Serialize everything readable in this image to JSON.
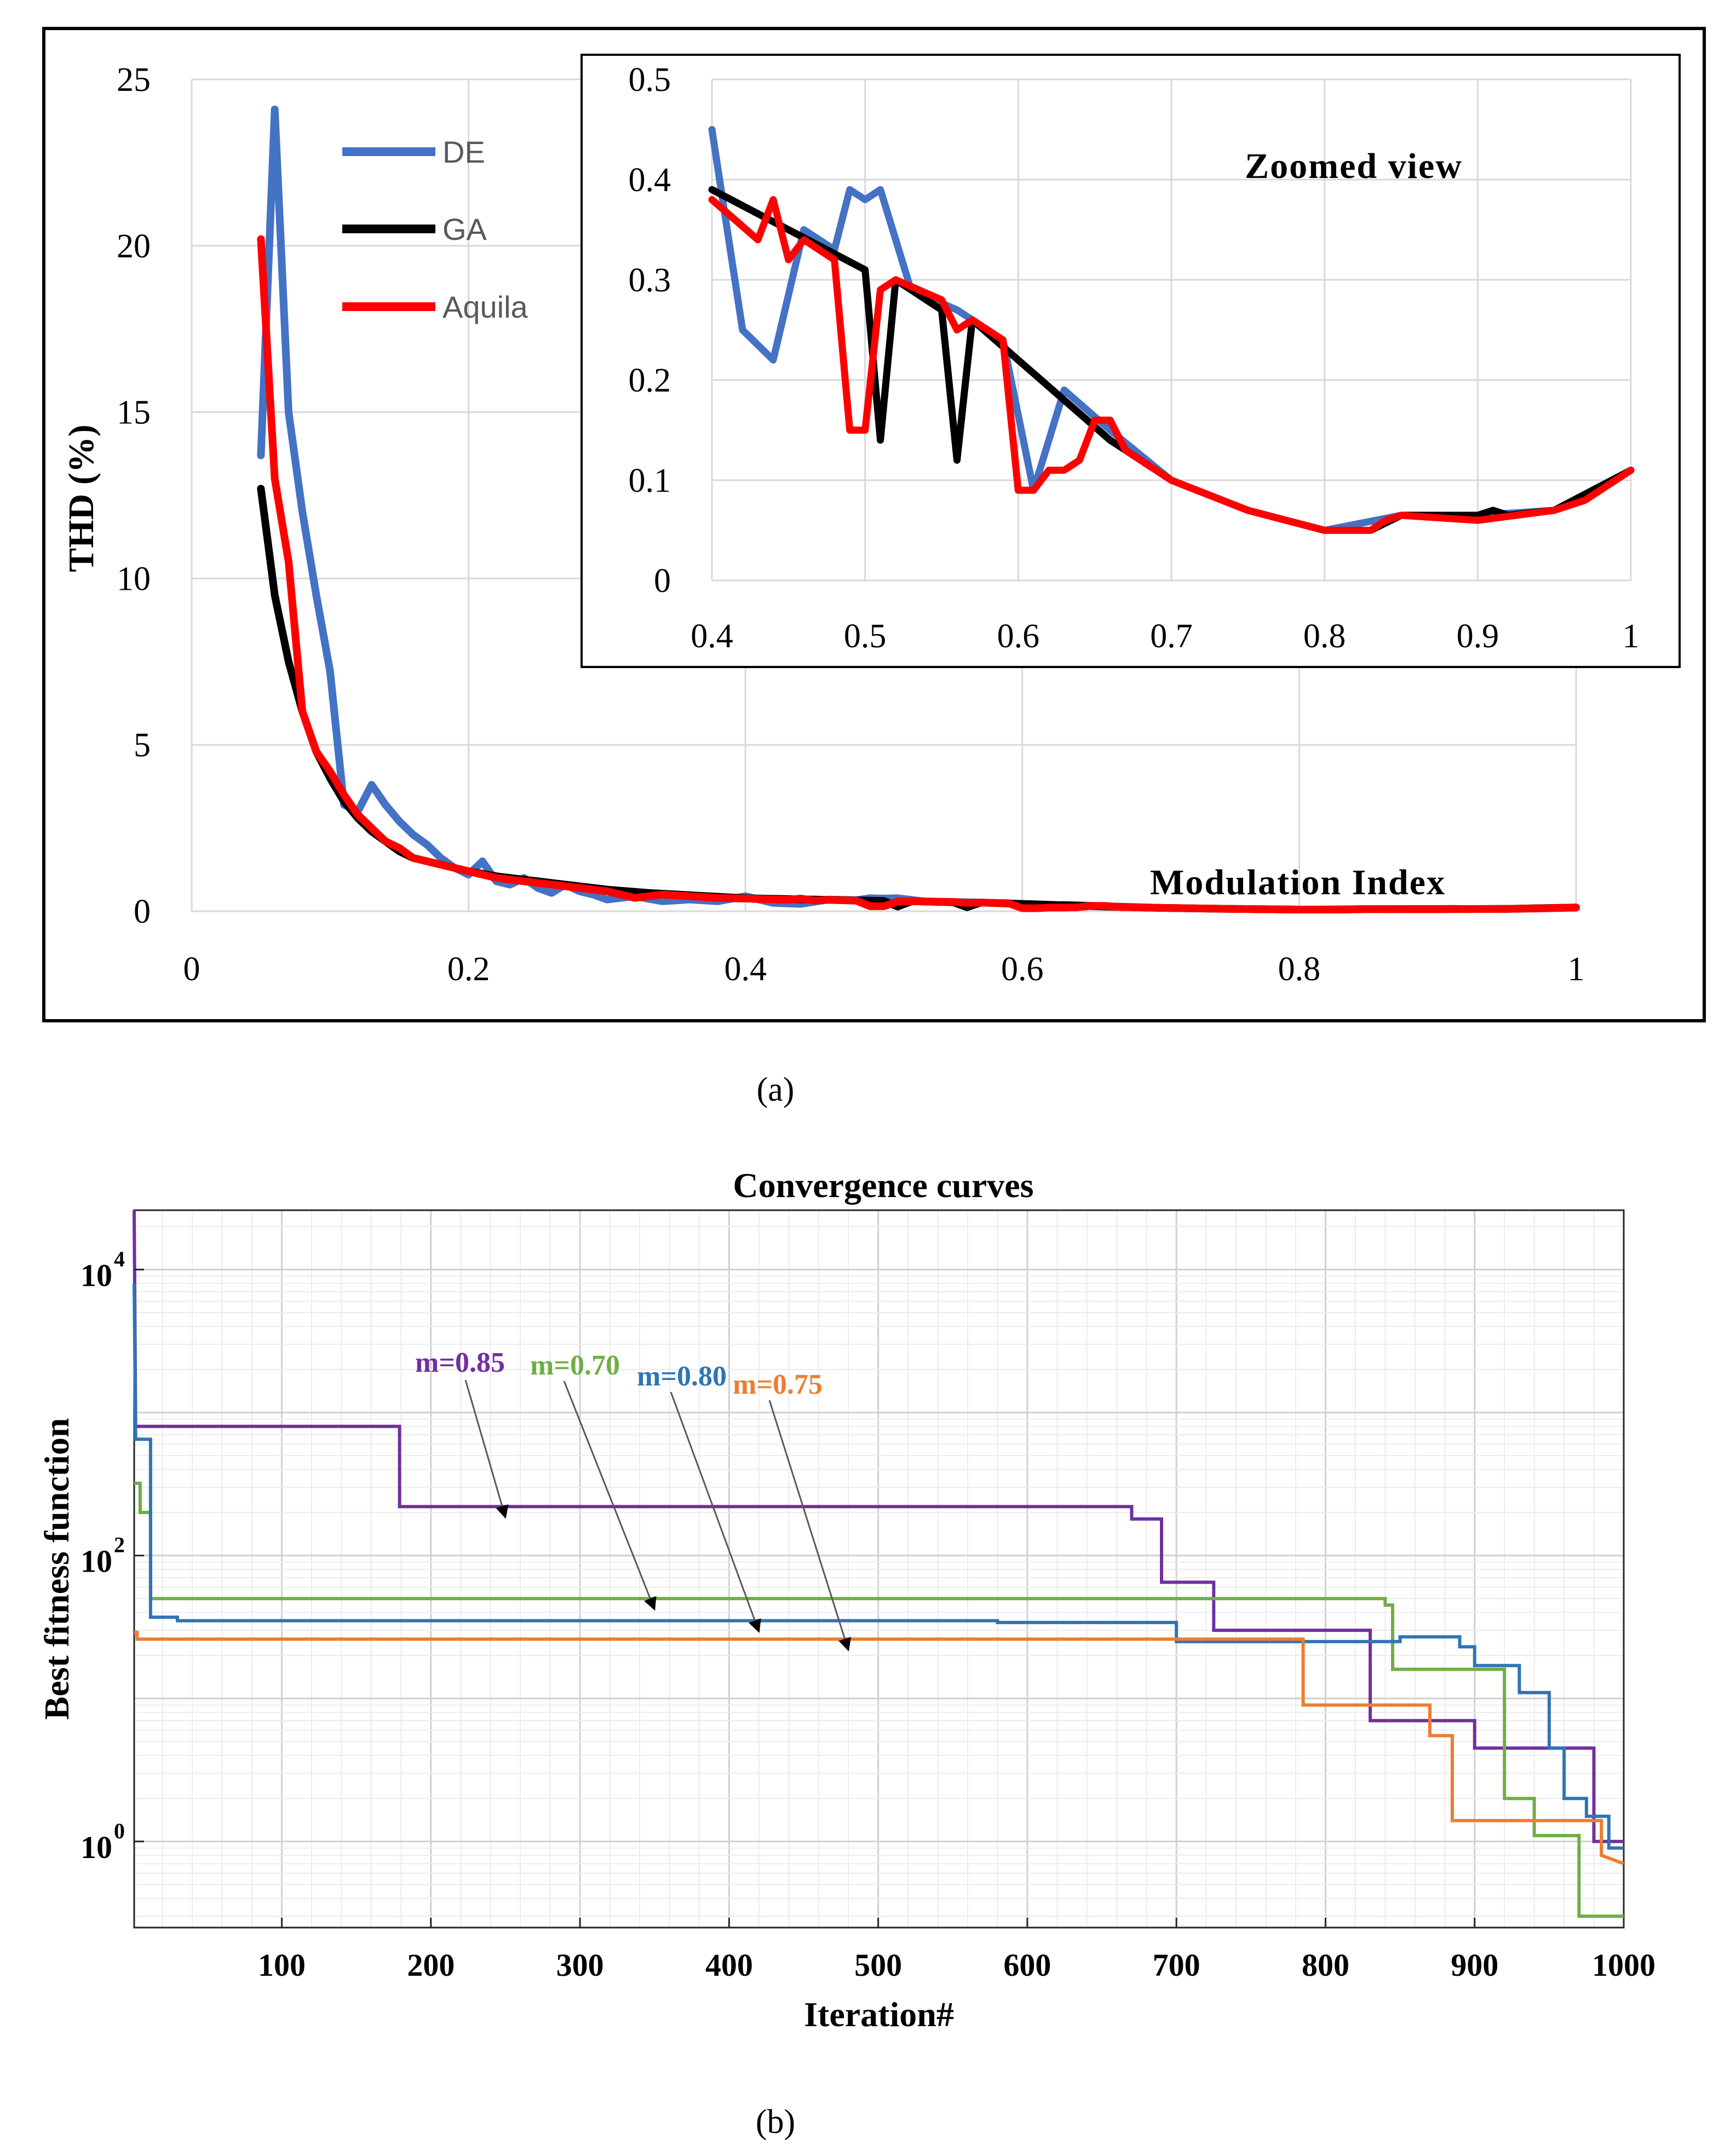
{
  "panel_labels": {
    "a": "(a)",
    "b": "(b)"
  },
  "chart_data": [
    {
      "id": "thd",
      "type": "line",
      "title": "",
      "xlabel": "Modulation Index",
      "ylabel": "THD (%)",
      "xlim": [
        0,
        1
      ],
      "ylim": [
        0,
        25
      ],
      "xticks": [
        "0",
        "0.2",
        "0.4",
        "0.6",
        "0.8",
        "1"
      ],
      "yticks": [
        "0",
        "5",
        "10",
        "15",
        "20",
        "25"
      ],
      "grid": true,
      "legend": "top-left",
      "series": [
        {
          "name": "DE",
          "color": "#4472c4",
          "points": [
            [
              0.05,
              13.7
            ],
            [
              0.06,
              24.1
            ],
            [
              0.07,
              15
            ],
            [
              0.08,
              12
            ],
            [
              0.09,
              9.5
            ],
            [
              0.1,
              7.2
            ],
            [
              0.11,
              3.2
            ],
            [
              0.12,
              3.0
            ],
            [
              0.13,
              3.8
            ],
            [
              0.14,
              3.2
            ],
            [
              0.15,
              2.7
            ],
            [
              0.16,
              2.3
            ],
            [
              0.17,
              2.0
            ],
            [
              0.18,
              1.6
            ],
            [
              0.19,
              1.3
            ],
            [
              0.2,
              1.1
            ],
            [
              0.21,
              1.5
            ],
            [
              0.22,
              0.9
            ],
            [
              0.23,
              0.8
            ],
            [
              0.24,
              1.0
            ],
            [
              0.25,
              0.7
            ],
            [
              0.26,
              0.55
            ],
            [
              0.27,
              0.8
            ],
            [
              0.28,
              0.6
            ],
            [
              0.29,
              0.5
            ],
            [
              0.3,
              0.35
            ],
            [
              0.32,
              0.45
            ],
            [
              0.34,
              0.3
            ],
            [
              0.36,
              0.35
            ],
            [
              0.38,
              0.3
            ],
            [
              0.4,
              0.45
            ],
            [
              0.42,
              0.25
            ],
            [
              0.44,
              0.22
            ],
            [
              0.46,
              0.35
            ],
            [
              0.48,
              0.33
            ],
            [
              0.49,
              0.39
            ],
            [
              0.5,
              0.38
            ],
            [
              0.51,
              0.39
            ],
            [
              0.53,
              0.29
            ],
            [
              0.56,
              0.27
            ],
            [
              0.59,
              0.24
            ],
            [
              0.61,
              0.09
            ],
            [
              0.63,
              0.19
            ],
            [
              0.66,
              0.15
            ],
            [
              0.7,
              0.1
            ],
            [
              0.75,
              0.07
            ],
            [
              0.8,
              0.05
            ],
            [
              0.85,
              0.065
            ],
            [
              0.9,
              0.065
            ],
            [
              0.95,
              0.07
            ],
            [
              1.0,
              0.11
            ]
          ]
        },
        {
          "name": "GA",
          "color": "#000000",
          "points": [
            [
              0.05,
              12.7
            ],
            [
              0.06,
              9.5
            ],
            [
              0.07,
              7.5
            ],
            [
              0.08,
              6.0
            ],
            [
              0.09,
              4.8
            ],
            [
              0.1,
              4.0
            ],
            [
              0.11,
              3.3
            ],
            [
              0.12,
              2.8
            ],
            [
              0.13,
              2.4
            ],
            [
              0.14,
              2.1
            ],
            [
              0.15,
              1.8
            ],
            [
              0.16,
              1.6
            ],
            [
              0.18,
              1.4
            ],
            [
              0.2,
              1.2
            ],
            [
              0.22,
              1.05
            ],
            [
              0.25,
              0.9
            ],
            [
              0.28,
              0.75
            ],
            [
              0.3,
              0.65
            ],
            [
              0.33,
              0.55
            ],
            [
              0.36,
              0.48
            ],
            [
              0.4,
              0.39
            ],
            [
              0.45,
              0.35
            ],
            [
              0.5,
              0.31
            ],
            [
              0.51,
              0.14
            ],
            [
              0.52,
              0.3
            ],
            [
              0.55,
              0.27
            ],
            [
              0.56,
              0.12
            ],
            [
              0.57,
              0.26
            ],
            [
              0.6,
              0.22
            ],
            [
              0.63,
              0.18
            ],
            [
              0.66,
              0.14
            ],
            [
              0.7,
              0.1
            ],
            [
              0.75,
              0.07
            ],
            [
              0.8,
              0.05
            ],
            [
              0.83,
              0.05
            ],
            [
              0.85,
              0.065
            ],
            [
              0.9,
              0.065
            ],
            [
              0.91,
              0.07
            ],
            [
              0.92,
              0.065
            ],
            [
              0.95,
              0.07
            ],
            [
              1.0,
              0.11
            ]
          ]
        },
        {
          "name": "Aquila",
          "color": "#ff0000",
          "points": [
            [
              0.05,
              20.2
            ],
            [
              0.06,
              13.0
            ],
            [
              0.07,
              10.5
            ],
            [
              0.08,
              6.0
            ],
            [
              0.09,
              4.8
            ],
            [
              0.1,
              4.2
            ],
            [
              0.11,
              3.5
            ],
            [
              0.12,
              2.9
            ],
            [
              0.13,
              2.5
            ],
            [
              0.14,
              2.1
            ],
            [
              0.15,
              1.9
            ],
            [
              0.16,
              1.6
            ],
            [
              0.18,
              1.4
            ],
            [
              0.2,
              1.2
            ],
            [
              0.22,
              1.0
            ],
            [
              0.25,
              0.85
            ],
            [
              0.28,
              0.7
            ],
            [
              0.3,
              0.6
            ],
            [
              0.32,
              0.4
            ],
            [
              0.34,
              0.5
            ],
            [
              0.36,
              0.45
            ],
            [
              0.38,
              0.4
            ],
            [
              0.4,
              0.38
            ],
            [
              0.43,
              0.34
            ],
            [
              0.44,
              0.38
            ],
            [
              0.45,
              0.32
            ],
            [
              0.46,
              0.34
            ],
            [
              0.48,
              0.32
            ],
            [
              0.49,
              0.15
            ],
            [
              0.5,
              0.15
            ],
            [
              0.51,
              0.29
            ],
            [
              0.52,
              0.3
            ],
            [
              0.55,
              0.28
            ],
            [
              0.56,
              0.25
            ],
            [
              0.57,
              0.26
            ],
            [
              0.59,
              0.24
            ],
            [
              0.6,
              0.09
            ],
            [
              0.61,
              0.09
            ],
            [
              0.62,
              0.11
            ],
            [
              0.63,
              0.11
            ],
            [
              0.64,
              0.12
            ],
            [
              0.65,
              0.16
            ],
            [
              0.66,
              0.16
            ],
            [
              0.67,
              0.13
            ],
            [
              0.7,
              0.1
            ],
            [
              0.75,
              0.07
            ],
            [
              0.8,
              0.05
            ],
            [
              0.83,
              0.05
            ],
            [
              0.84,
              0.06
            ],
            [
              0.85,
              0.065
            ],
            [
              0.9,
              0.06
            ],
            [
              0.95,
              0.07
            ],
            [
              0.97,
              0.08
            ],
            [
              0.99,
              0.1
            ],
            [
              1.0,
              0.11
            ]
          ]
        }
      ]
    },
    {
      "id": "inset",
      "type": "line",
      "title": "Zoomed view",
      "xlim": [
        0.4,
        1
      ],
      "ylim": [
        0,
        0.5
      ],
      "xticks": [
        "0.4",
        "0.5",
        "0.6",
        "0.7",
        "0.8",
        "0.9",
        "1"
      ],
      "yticks": [
        "0",
        "0.1",
        "0.2",
        "0.3",
        "0.4",
        "0.5"
      ],
      "grid": true,
      "legend": "none"
    },
    {
      "id": "convergence",
      "type": "line",
      "title": "Convergence curves",
      "xlabel": "Iteration#",
      "ylabel": "Best fitness function",
      "xlim": [
        1,
        1000
      ],
      "ylim": [
        0.25,
        26000
      ],
      "yscale": "log",
      "xticks": [
        "100",
        "200",
        "300",
        "400",
        "500",
        "600",
        "700",
        "800",
        "900",
        "1000"
      ],
      "ytick_base": "10",
      "ytick_exponents": [
        "0",
        "2",
        "4"
      ],
      "grid": true,
      "legend": "annotations",
      "series": [
        {
          "name": "m=0.85",
          "color": "#7030a0",
          "steps": [
            [
              1,
              26000
            ],
            [
              2,
              800
            ],
            [
              179,
              800
            ],
            [
              179,
              220
            ],
            [
              670,
              220
            ],
            [
              670,
              180
            ],
            [
              690,
              180
            ],
            [
              690,
              65
            ],
            [
              725,
              65
            ],
            [
              725,
              30
            ],
            [
              830,
              30
            ],
            [
              830,
              7
            ],
            [
              860,
              7
            ],
            [
              860,
              7
            ],
            [
              900,
              7
            ],
            [
              900,
              4.5
            ],
            [
              980,
              4.5
            ],
            [
              980,
              1
            ],
            [
              1000,
              1
            ]
          ]
        },
        {
          "name": "m=0.70",
          "color": "#70ad47",
          "steps": [
            [
              1,
              320
            ],
            [
              5,
              320
            ],
            [
              5,
              200
            ],
            [
              12,
              200
            ],
            [
              12,
              50
            ],
            [
              840,
              50
            ],
            [
              840,
              45
            ],
            [
              845,
              45
            ],
            [
              845,
              16
            ],
            [
              920,
              16
            ],
            [
              920,
              2
            ],
            [
              940,
              2
            ],
            [
              940,
              1.1
            ],
            [
              970,
              1.1
            ],
            [
              970,
              0.3
            ],
            [
              1000,
              0.3
            ]
          ]
        },
        {
          "name": "m=0.80",
          "color": "#2e75b6",
          "steps": [
            [
              1,
              8000
            ],
            [
              2,
              650
            ],
            [
              12,
              650
            ],
            [
              12,
              37
            ],
            [
              30,
              37
            ],
            [
              30,
              35
            ],
            [
              580,
              35
            ],
            [
              580,
              34
            ],
            [
              700,
              34
            ],
            [
              700,
              25
            ],
            [
              850,
              25
            ],
            [
              850,
              27
            ],
            [
              890,
              27
            ],
            [
              890,
              23
            ],
            [
              900,
              23
            ],
            [
              900,
              17
            ],
            [
              930,
              17
            ],
            [
              930,
              11
            ],
            [
              950,
              11
            ],
            [
              950,
              4.5
            ],
            [
              960,
              4.5
            ],
            [
              960,
              2
            ],
            [
              975,
              2
            ],
            [
              975,
              1.5
            ],
            [
              990,
              1.5
            ],
            [
              990,
              0.9
            ],
            [
              1000,
              0.9
            ]
          ]
        },
        {
          "name": "m=0.75",
          "color": "#ed7d31",
          "steps": [
            [
              1,
              29
            ],
            [
              3,
              29
            ],
            [
              3,
              26
            ],
            [
              785,
              26
            ],
            [
              785,
              9
            ],
            [
              870,
              9
            ],
            [
              870,
              5.5
            ],
            [
              885,
              5.5
            ],
            [
              885,
              1.4
            ],
            [
              985,
              1.4
            ],
            [
              985,
              0.8
            ],
            [
              1000,
              0.7
            ]
          ]
        }
      ],
      "annotations": [
        {
          "text": "m=0.85",
          "color": "#7030a0",
          "target_iter": 250,
          "target_val": 220
        },
        {
          "text": "m=0.70",
          "color": "#70ad47",
          "target_iter": 350,
          "target_val": 50
        },
        {
          "text": "m=0.80",
          "color": "#2e75b6",
          "target_iter": 420,
          "target_val": 35
        },
        {
          "text": "m=0.75",
          "color": "#ed7d31",
          "target_iter": 480,
          "target_val": 26
        }
      ]
    }
  ]
}
